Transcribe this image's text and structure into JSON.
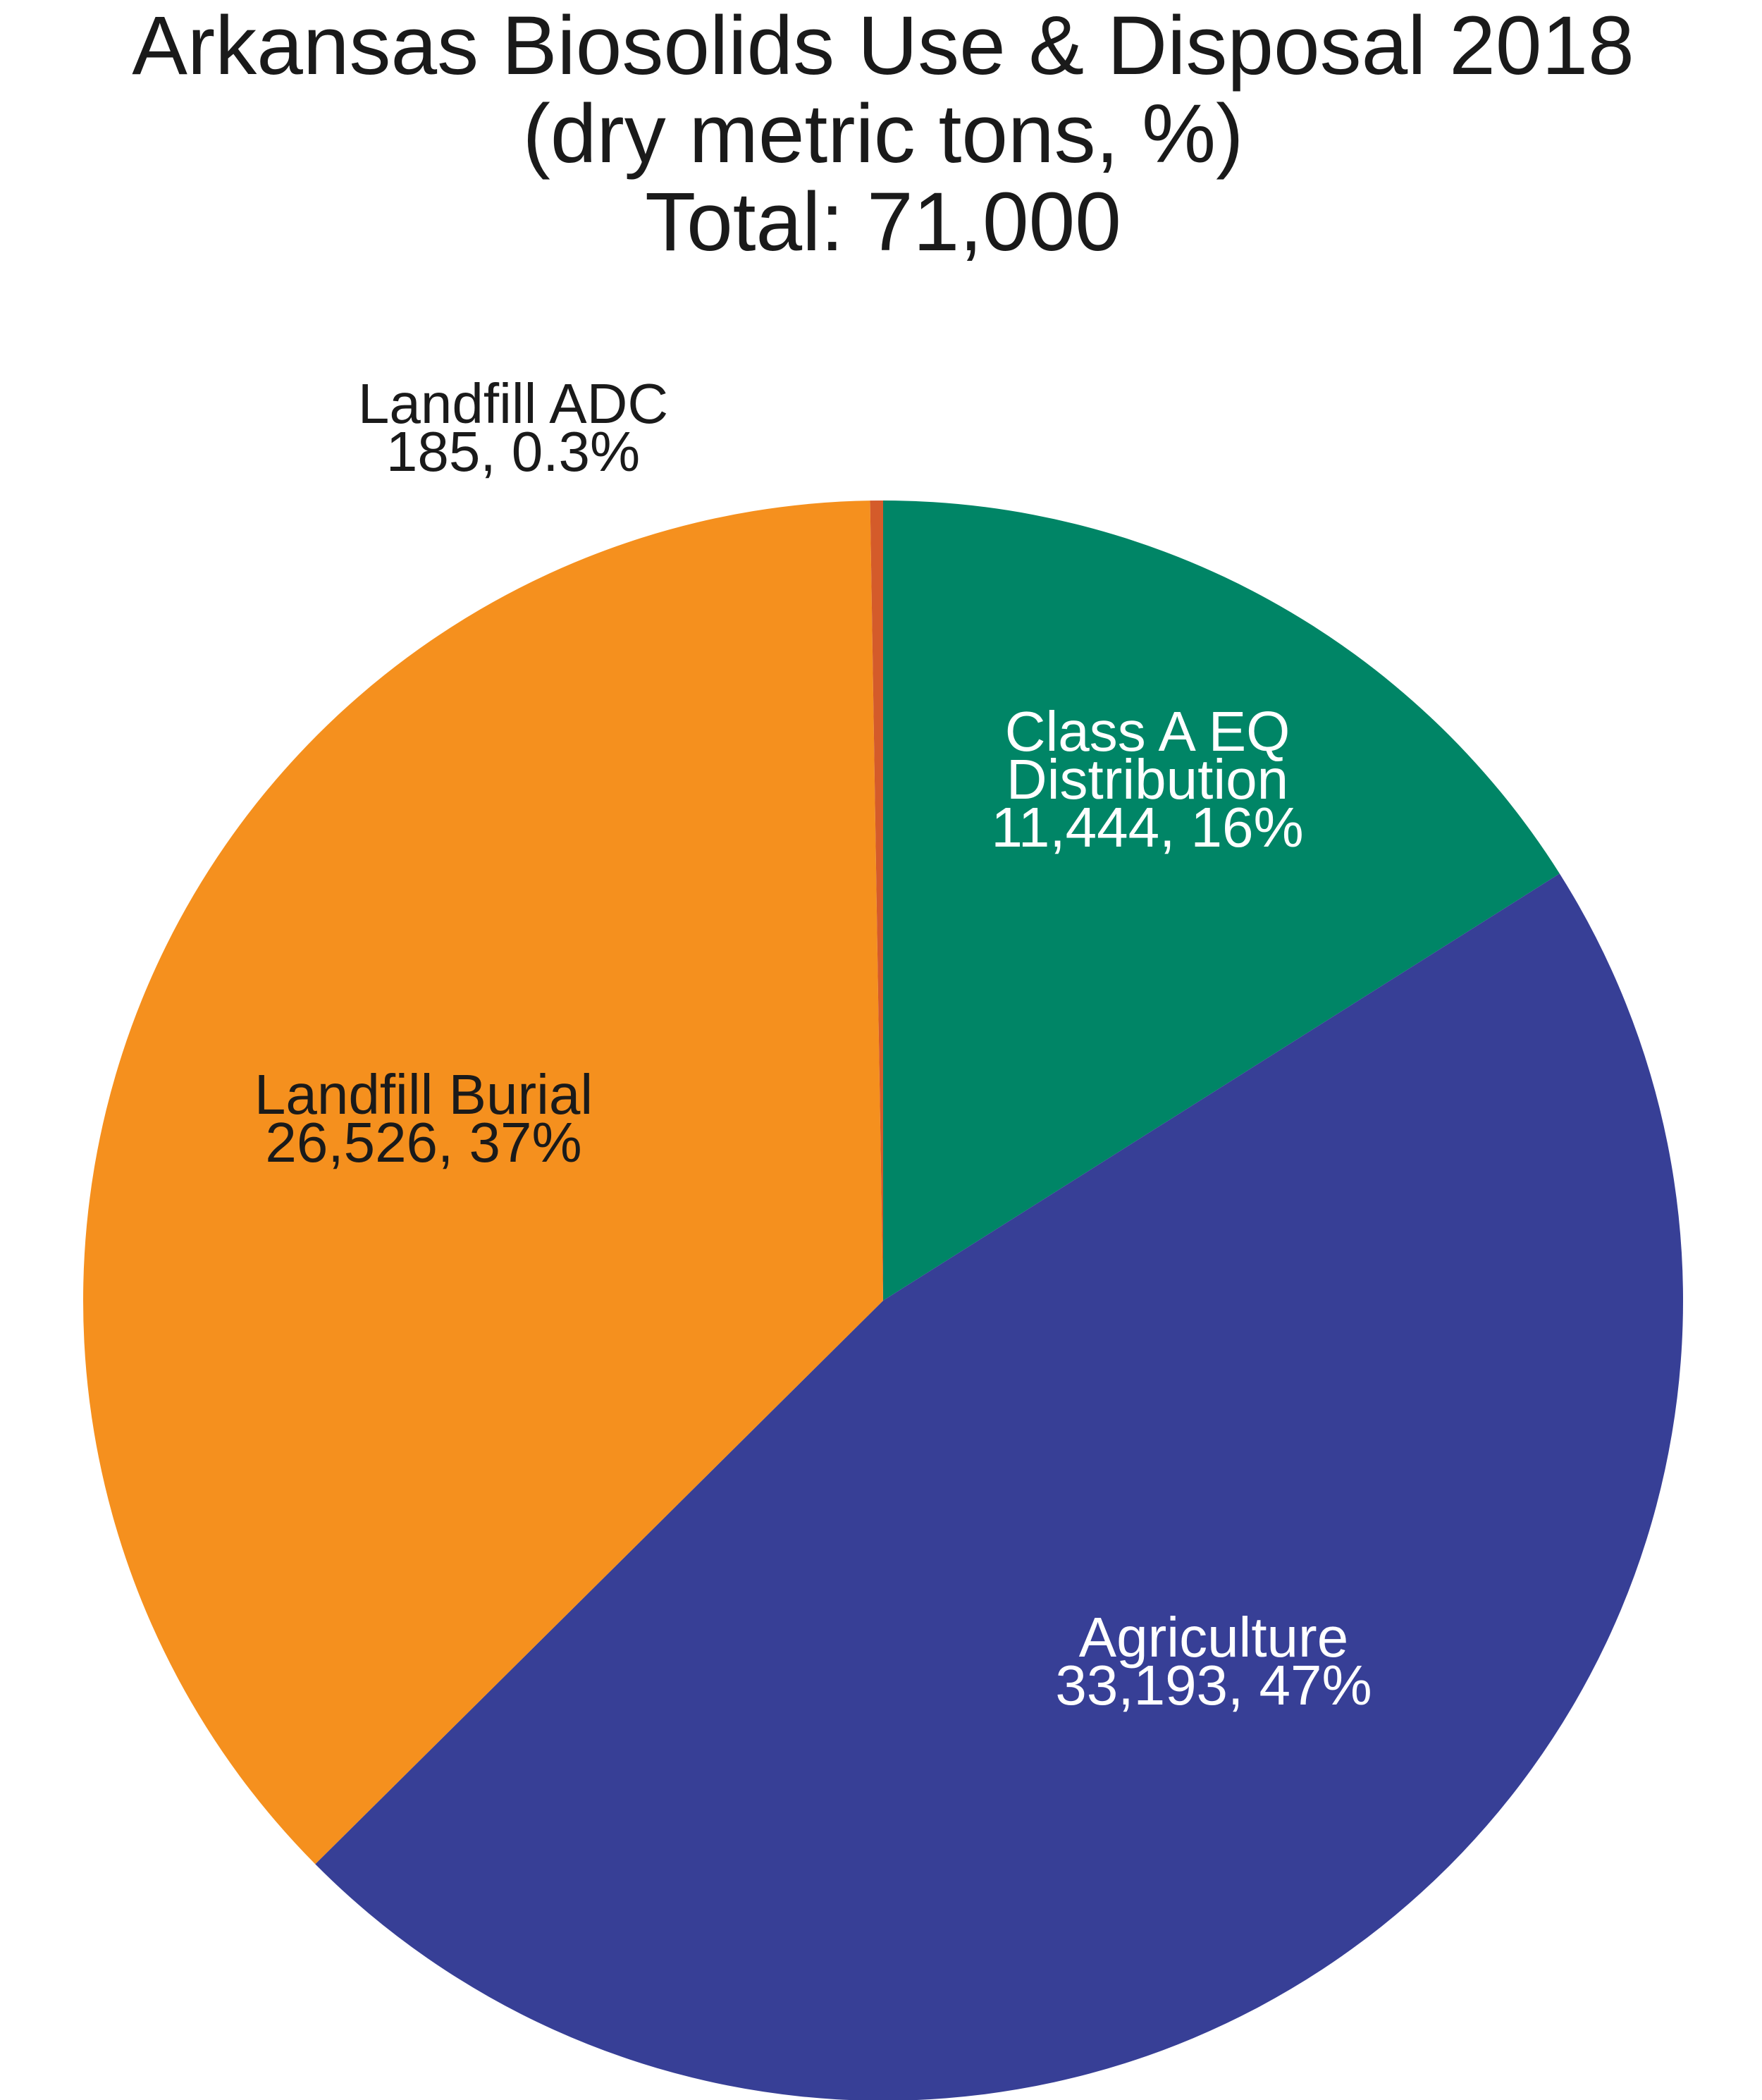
{
  "chart_data": {
    "type": "pie",
    "title": [
      "Arkansas Biosolids Use & Disposal 2018",
      "(dry metric tons, %)",
      "Total: 71,000"
    ],
    "units": "dry metric tons",
    "total": 71000,
    "start": "12 o'clock",
    "direction": "clockwise",
    "slices": [
      {
        "key": "class-a-eq-distribution",
        "name": "Class A EQ Distribution",
        "value": 11444,
        "percent": 16,
        "color": "#008566",
        "label_color": "#ffffff",
        "label_lines": [
          "Class A EQ",
          "Distribution",
          "11,444, 16%"
        ]
      },
      {
        "key": "agriculture",
        "name": "Agriculture",
        "value": 33193,
        "percent": 47,
        "color": "#373f96",
        "label_color": "#ffffff",
        "label_lines": [
          "Agriculture",
          "33,193, 47%"
        ]
      },
      {
        "key": "landfill-burial",
        "name": "Landfill Burial",
        "value": 26526,
        "percent": 37,
        "color": "#f5901e",
        "label_color": "#1a1a1a",
        "label_lines": [
          "Landfill Burial",
          "26,526, 37%"
        ]
      },
      {
        "key": "landfill-adc",
        "name": "Landfill ADC",
        "value": 185,
        "percent": 0.3,
        "color": "#d45b2a",
        "label_color": "#1a1a1a",
        "label_lines": [
          "Landfill ADC",
          "185, 0.3%"
        ]
      }
    ]
  }
}
